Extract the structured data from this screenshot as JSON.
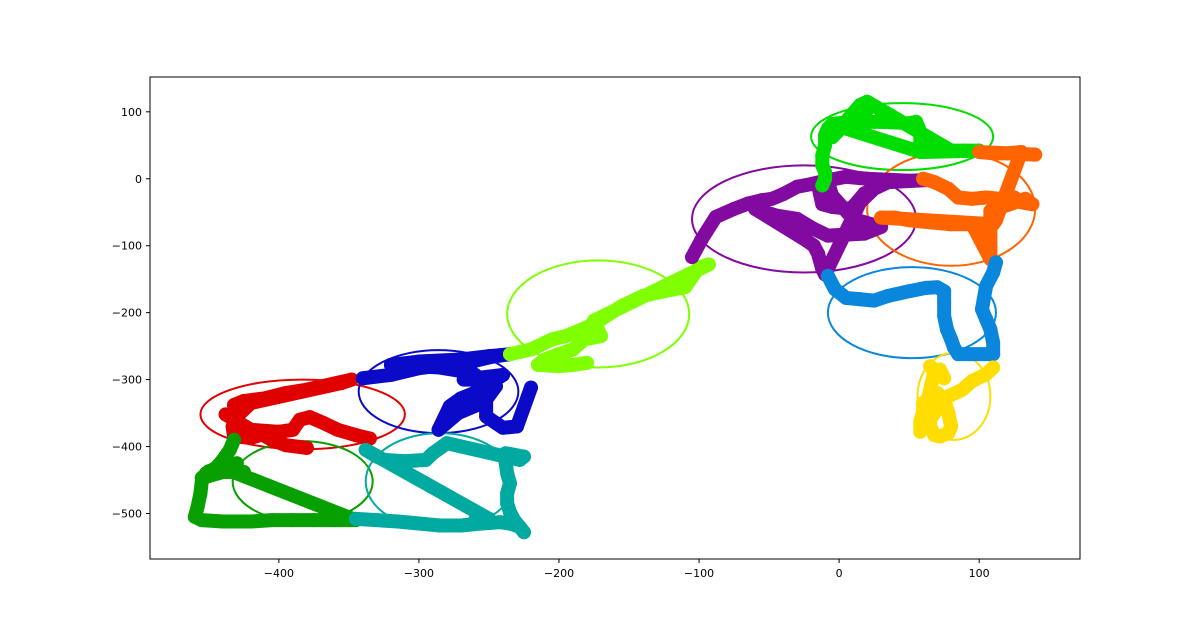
{
  "chart_data": {
    "type": "scatter",
    "title": "",
    "xlabel": "",
    "ylabel": "",
    "xlim": [
      -492,
      172
    ],
    "ylim": [
      -568,
      152
    ],
    "xticks": [
      -400,
      -300,
      -200,
      -100,
      0,
      100
    ],
    "yticks": [
      -500,
      -400,
      -300,
      -200,
      -100,
      0,
      100
    ],
    "xtick_labels": [
      "−400",
      "−300",
      "−200",
      "−100",
      "0",
      "100"
    ],
    "ytick_labels": [
      "−500",
      "−400",
      "−300",
      "−200",
      "−100",
      "0",
      "100"
    ],
    "grid": false,
    "legend": "none",
    "series": [
      {
        "color": "#e00000",
        "points": [
          [
            -380,
            -402
          ],
          [
            -395,
            -398
          ],
          [
            -405,
            -390
          ],
          [
            -412,
            -382
          ],
          [
            -420,
            -387
          ],
          [
            -432,
            -385
          ],
          [
            -433,
            -370
          ],
          [
            -428,
            -350
          ],
          [
            -432,
            -338
          ],
          [
            -425,
            -332
          ],
          [
            -410,
            -328
          ],
          [
            -395,
            -320
          ],
          [
            -380,
            -315
          ],
          [
            -365,
            -308
          ],
          [
            -348,
            -300
          ],
          [
            -355,
            -305
          ],
          [
            -420,
            -335
          ],
          [
            -430,
            -355
          ],
          [
            -438,
            -352
          ],
          [
            -420,
            -375
          ],
          [
            -400,
            -378
          ],
          [
            -390,
            -375
          ],
          [
            -385,
            -360
          ],
          [
            -378,
            -356
          ],
          [
            -368,
            -365
          ],
          [
            -358,
            -375
          ],
          [
            -345,
            -383
          ],
          [
            -335,
            -388
          ]
        ],
        "ellipse": {
          "cx": -383,
          "cy": -352,
          "rx": 73,
          "ry": 52
        }
      },
      {
        "color": "#0a0ac8",
        "points": [
          [
            -340,
            -298
          ],
          [
            -320,
            -293
          ],
          [
            -300,
            -283
          ],
          [
            -280,
            -278
          ],
          [
            -260,
            -272
          ],
          [
            -248,
            -266
          ],
          [
            -235,
            -262
          ],
          [
            -250,
            -265
          ],
          [
            -270,
            -270
          ],
          [
            -300,
            -273
          ],
          [
            -320,
            -278
          ],
          [
            -285,
            -282
          ],
          [
            -262,
            -290
          ],
          [
            -255,
            -300
          ],
          [
            -268,
            -300
          ],
          [
            -240,
            -293
          ],
          [
            -258,
            -318
          ],
          [
            -270,
            -328
          ],
          [
            -278,
            -340
          ],
          [
            -286,
            -375
          ],
          [
            -272,
            -350
          ],
          [
            -255,
            -335
          ],
          [
            -250,
            -320
          ],
          [
            -245,
            -310
          ],
          [
            -252,
            -330
          ],
          [
            -252,
            -355
          ],
          [
            -245,
            -365
          ],
          [
            -240,
            -372
          ],
          [
            -230,
            -370
          ],
          [
            -220,
            -312
          ]
        ],
        "ellipse": {
          "cx": -286,
          "cy": -318,
          "rx": 57,
          "ry": 62
        }
      },
      {
        "color": "#7fff00",
        "points": [
          [
            -235,
            -262
          ],
          [
            -220,
            -255
          ],
          [
            -205,
            -240
          ],
          [
            -195,
            -235
          ],
          [
            -180,
            -222
          ],
          [
            -170,
            -210
          ],
          [
            -155,
            -190
          ],
          [
            -140,
            -175
          ],
          [
            -125,
            -168
          ],
          [
            -110,
            -162
          ],
          [
            -100,
            -132
          ],
          [
            -93,
            -128
          ],
          [
            -175,
            -212
          ],
          [
            -170,
            -235
          ],
          [
            -182,
            -240
          ],
          [
            -190,
            -255
          ],
          [
            -200,
            -262
          ],
          [
            -210,
            -270
          ],
          [
            -215,
            -278
          ],
          [
            -200,
            -280
          ],
          [
            -190,
            -278
          ],
          [
            -180,
            -275
          ]
        ],
        "ellipse": {
          "cx": -172,
          "cy": -202,
          "rx": 65,
          "ry": 80
        }
      },
      {
        "color": "#820aa0",
        "points": [
          [
            -105,
            -117
          ],
          [
            -98,
            -90
          ],
          [
            -88,
            -57
          ],
          [
            -75,
            -45
          ],
          [
            -65,
            -37
          ],
          [
            -55,
            -32
          ],
          [
            -48,
            -30
          ],
          [
            -40,
            -23
          ],
          [
            -30,
            -12
          ],
          [
            -20,
            -8
          ],
          [
            -10,
            -3
          ],
          [
            5,
            3
          ],
          [
            20,
            0
          ],
          [
            50,
            -3
          ],
          [
            62,
            -2
          ],
          [
            35,
            -5
          ],
          [
            18,
            -22
          ],
          [
            12,
            -37
          ],
          [
            8,
            -45
          ],
          [
            -5,
            -42
          ],
          [
            -12,
            -38
          ],
          [
            -15,
            -10
          ],
          [
            -8,
            -5
          ],
          [
            -5,
            -25
          ],
          [
            10,
            -60
          ],
          [
            30,
            -72
          ],
          [
            18,
            -82
          ],
          [
            -8,
            -85
          ],
          [
            -18,
            -75
          ],
          [
            -30,
            -60
          ],
          [
            -45,
            -55
          ],
          [
            -60,
            -45
          ],
          [
            -25,
            -90
          ],
          [
            -18,
            -100
          ],
          [
            -15,
            -112
          ],
          [
            -12,
            -135
          ],
          [
            -10,
            -143
          ],
          [
            15,
            -35
          ],
          [
            25,
            -15
          ]
        ],
        "ellipse": {
          "cx": -25,
          "cy": -60,
          "rx": 80,
          "ry": 80
        }
      },
      {
        "color": "#00dd00",
        "points": [
          [
            -12,
            -10
          ],
          [
            -10,
            0
          ],
          [
            -10,
            10
          ],
          [
            -12,
            20
          ],
          [
            -12,
            35
          ],
          [
            -10,
            50
          ],
          [
            -10,
            65
          ],
          [
            -8,
            75
          ],
          [
            -5,
            82
          ],
          [
            10,
            85
          ],
          [
            30,
            85
          ],
          [
            50,
            83
          ],
          [
            55,
            85
          ],
          [
            58,
            70
          ],
          [
            58,
            55
          ],
          [
            58,
            40
          ],
          [
            5,
            75
          ],
          [
            10,
            88
          ],
          [
            15,
            95
          ],
          [
            20,
            103
          ],
          [
            18,
            110
          ],
          [
            -5,
            62
          ],
          [
            15,
            110
          ],
          [
            20,
            115
          ],
          [
            80,
            42
          ],
          [
            90,
            42
          ],
          [
            100,
            42
          ],
          [
            60,
            40
          ],
          [
            70,
            42
          ]
        ],
        "ellipse": {
          "cx": 45,
          "cy": 63,
          "rx": 65,
          "ry": 50
        }
      },
      {
        "color": "#ff6400",
        "points": [
          [
            60,
            0
          ],
          [
            68,
            -5
          ],
          [
            78,
            -15
          ],
          [
            85,
            -28
          ],
          [
            95,
            -30
          ],
          [
            105,
            -28
          ],
          [
            115,
            -30
          ],
          [
            125,
            -28
          ],
          [
            130,
            -35
          ],
          [
            138,
            -38
          ],
          [
            133,
            -30
          ],
          [
            108,
            -48
          ],
          [
            108,
            -60
          ],
          [
            108,
            -85
          ],
          [
            108,
            -100
          ],
          [
            108,
            -110
          ],
          [
            108,
            -120
          ],
          [
            95,
            -68
          ],
          [
            80,
            -68
          ],
          [
            65,
            -65
          ],
          [
            50,
            -62
          ],
          [
            40,
            -58
          ],
          [
            30,
            -58
          ],
          [
            110,
            -68
          ],
          [
            112,
            -62
          ],
          [
            130,
            40
          ],
          [
            120,
            38
          ],
          [
            110,
            38
          ],
          [
            100,
            40
          ],
          [
            140,
            36
          ]
        ],
        "ellipse": {
          "cx": 80,
          "cy": -45,
          "rx": 60,
          "ry": 85
        }
      },
      {
        "color": "#0a87dc",
        "points": [
          [
            -8,
            -145
          ],
          [
            -3,
            -165
          ],
          [
            5,
            -178
          ],
          [
            15,
            -180
          ],
          [
            25,
            -182
          ],
          [
            35,
            -175
          ],
          [
            50,
            -168
          ],
          [
            62,
            -163
          ],
          [
            70,
            -162
          ],
          [
            75,
            -168
          ],
          [
            75,
            -185
          ],
          [
            75,
            -205
          ],
          [
            77,
            -225
          ],
          [
            80,
            -240
          ],
          [
            82,
            -252
          ],
          [
            85,
            -262
          ],
          [
            110,
            -262
          ],
          [
            110,
            -245
          ],
          [
            108,
            -225
          ],
          [
            105,
            -210
          ],
          [
            102,
            -195
          ],
          [
            105,
            -160
          ],
          [
            110,
            -140
          ],
          [
            112,
            -125
          ]
        ],
        "ellipse": {
          "cx": 52,
          "cy": -200,
          "rx": 60,
          "ry": 68
        }
      },
      {
        "color": "#ffdd00",
        "points": [
          [
            110,
            -282
          ],
          [
            105,
            -292
          ],
          [
            95,
            -302
          ],
          [
            88,
            -315
          ],
          [
            78,
            -325
          ],
          [
            72,
            -338
          ],
          [
            68,
            -350
          ],
          [
            65,
            -360
          ],
          [
            65,
            -370
          ],
          [
            68,
            -383
          ],
          [
            72,
            -385
          ],
          [
            78,
            -380
          ],
          [
            80,
            -370
          ],
          [
            78,
            -350
          ],
          [
            75,
            -330
          ],
          [
            70,
            -320
          ],
          [
            60,
            -335
          ],
          [
            60,
            -348
          ],
          [
            58,
            -362
          ],
          [
            58,
            -378
          ],
          [
            68,
            -288
          ],
          [
            72,
            -285
          ],
          [
            75,
            -298
          ],
          [
            65,
            -280
          ]
        ],
        "ellipse": {
          "cx": 82,
          "cy": -325,
          "rx": 26,
          "ry": 65
        }
      },
      {
        "color": "#07a000",
        "points": [
          [
            -432,
            -390
          ],
          [
            -435,
            -405
          ],
          [
            -440,
            -420
          ],
          [
            -445,
            -432
          ],
          [
            -452,
            -440
          ],
          [
            -455,
            -452
          ],
          [
            -456,
            -470
          ],
          [
            -458,
            -490
          ],
          [
            -460,
            -505
          ],
          [
            -455,
            -510
          ],
          [
            -440,
            -512
          ],
          [
            -420,
            -512
          ],
          [
            -405,
            -510
          ],
          [
            -390,
            -510
          ],
          [
            -375,
            -510
          ],
          [
            -360,
            -510
          ],
          [
            -345,
            -510
          ],
          [
            -430,
            -440
          ],
          [
            -425,
            -438
          ],
          [
            -440,
            -438
          ],
          [
            -455,
            -447
          ],
          [
            -450,
            -437
          ],
          [
            -430,
            -425
          ]
        ],
        "ellipse": {
          "cx": -383,
          "cy": -452,
          "rx": 50,
          "ry": 60
        }
      },
      {
        "color": "#00aaa0",
        "points": [
          [
            -345,
            -508
          ],
          [
            -330,
            -510
          ],
          [
            -315,
            -512
          ],
          [
            -300,
            -515
          ],
          [
            -285,
            -518
          ],
          [
            -270,
            -518
          ],
          [
            -255,
            -515
          ],
          [
            -242,
            -513
          ],
          [
            -235,
            -515
          ],
          [
            -228,
            -520
          ],
          [
            -225,
            -528
          ],
          [
            -232,
            -510
          ],
          [
            -235,
            -498
          ],
          [
            -237,
            -485
          ],
          [
            -237,
            -470
          ],
          [
            -235,
            -455
          ],
          [
            -237,
            -440
          ],
          [
            -238,
            -425
          ],
          [
            -238,
            -410
          ],
          [
            -225,
            -415
          ],
          [
            -228,
            -420
          ],
          [
            -280,
            -395
          ],
          [
            -290,
            -410
          ],
          [
            -295,
            -420
          ],
          [
            -310,
            -422
          ],
          [
            -325,
            -420
          ],
          [
            -330,
            -415
          ],
          [
            -338,
            -405
          ],
          [
            -250,
            -508
          ],
          [
            -260,
            -510
          ]
        ],
        "ellipse": {
          "cx": -285,
          "cy": -452,
          "rx": 53,
          "ry": 72
        }
      }
    ]
  }
}
